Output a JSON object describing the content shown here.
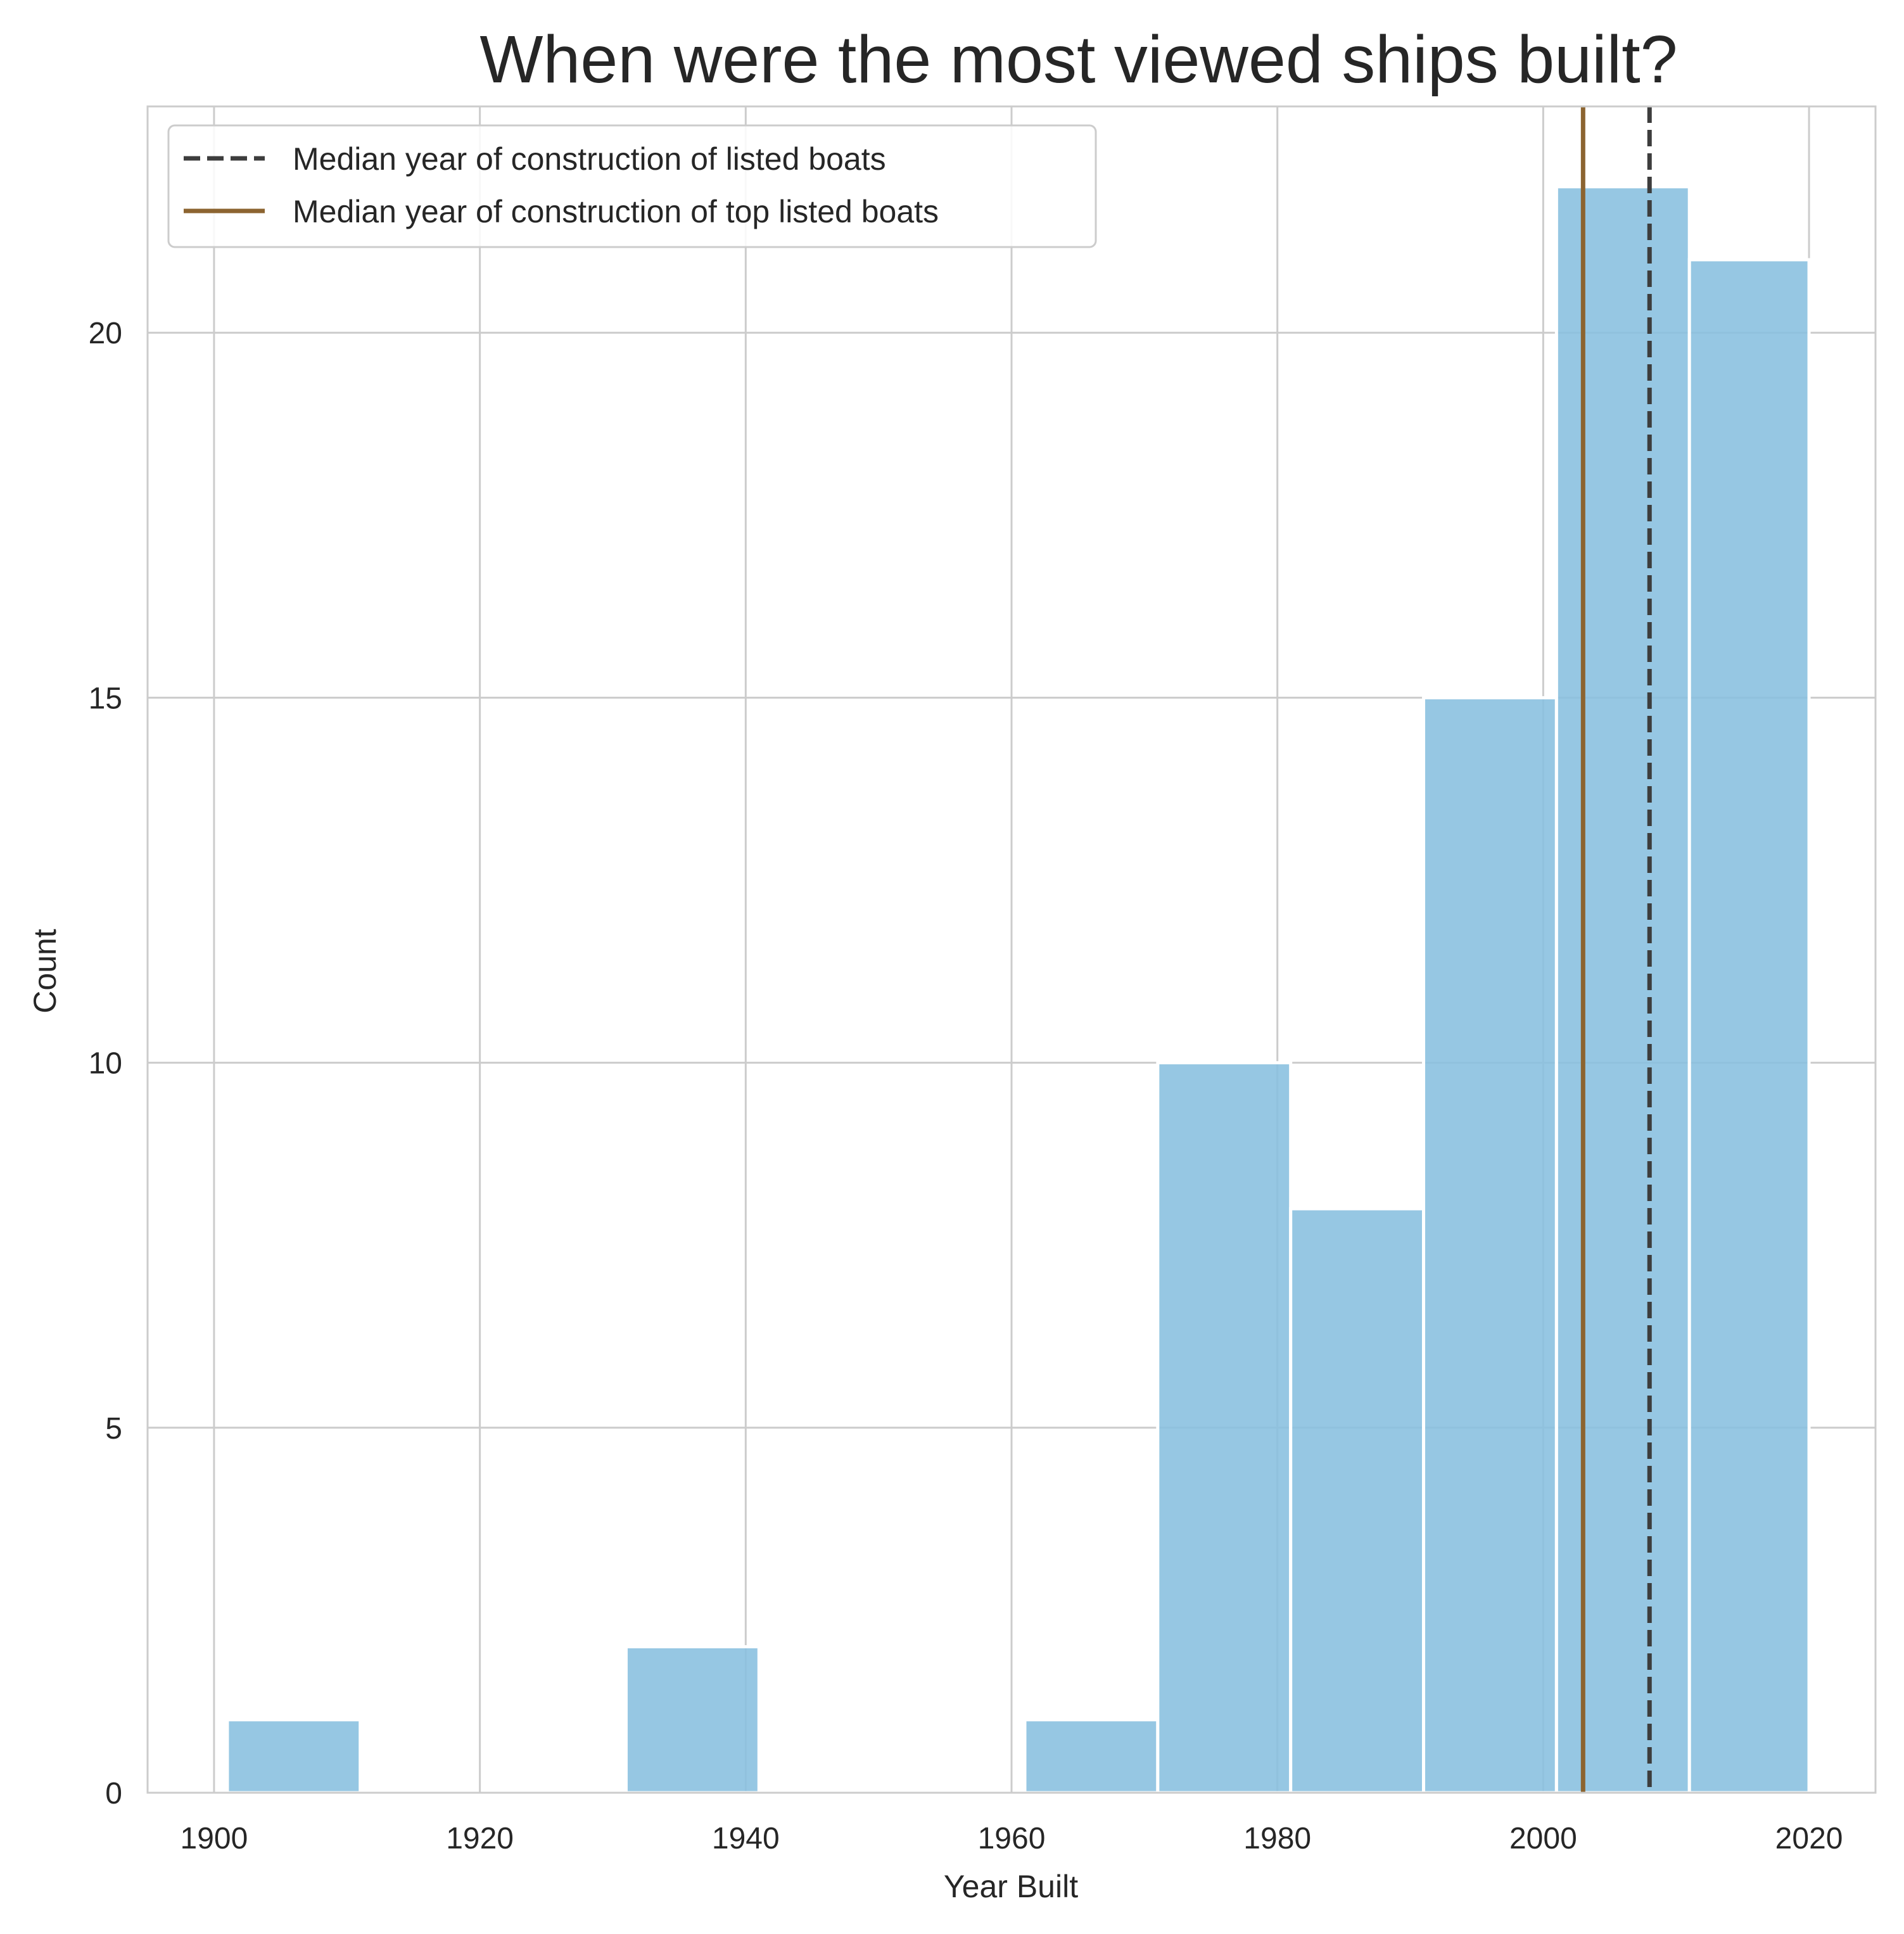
{
  "chart_data": {
    "type": "bar",
    "title": "When were the most viewed ships built?",
    "xlabel": "Year Built",
    "ylabel": "Count",
    "xlim": [
      1895,
      2025
    ],
    "ylim": [
      0,
      23.1
    ],
    "xticks": [
      1900,
      1920,
      1940,
      1960,
      1980,
      2000,
      2020
    ],
    "yticks": [
      0,
      5,
      10,
      15,
      20
    ],
    "grid": true,
    "bins": [
      {
        "start": 1901,
        "end": 1911,
        "count": 1
      },
      {
        "start": 1911,
        "end": 1921,
        "count": 0
      },
      {
        "start": 1921,
        "end": 1931,
        "count": 0
      },
      {
        "start": 1931,
        "end": 1941,
        "count": 2
      },
      {
        "start": 1941,
        "end": 1951,
        "count": 0
      },
      {
        "start": 1951,
        "end": 1961,
        "count": 0
      },
      {
        "start": 1961,
        "end": 1971,
        "count": 1
      },
      {
        "start": 1971,
        "end": 1981,
        "count": 10
      },
      {
        "start": 1981,
        "end": 1991,
        "count": 8
      },
      {
        "start": 1991,
        "end": 2001,
        "count": 15
      },
      {
        "start": 2001,
        "end": 2011,
        "count": 22
      },
      {
        "start": 2011,
        "end": 2020,
        "count": 21
      }
    ],
    "bar_color": "#87bfdf",
    "vlines": [
      {
        "name": "Median year of construction of listed boats",
        "x": 2008,
        "style": "dashed",
        "color": "#3d3d3d"
      },
      {
        "name": "Median year of construction of top listed boats",
        "x": 2003,
        "style": "solid",
        "color": "#8c6430"
      }
    ],
    "legend_position": "top-left"
  }
}
